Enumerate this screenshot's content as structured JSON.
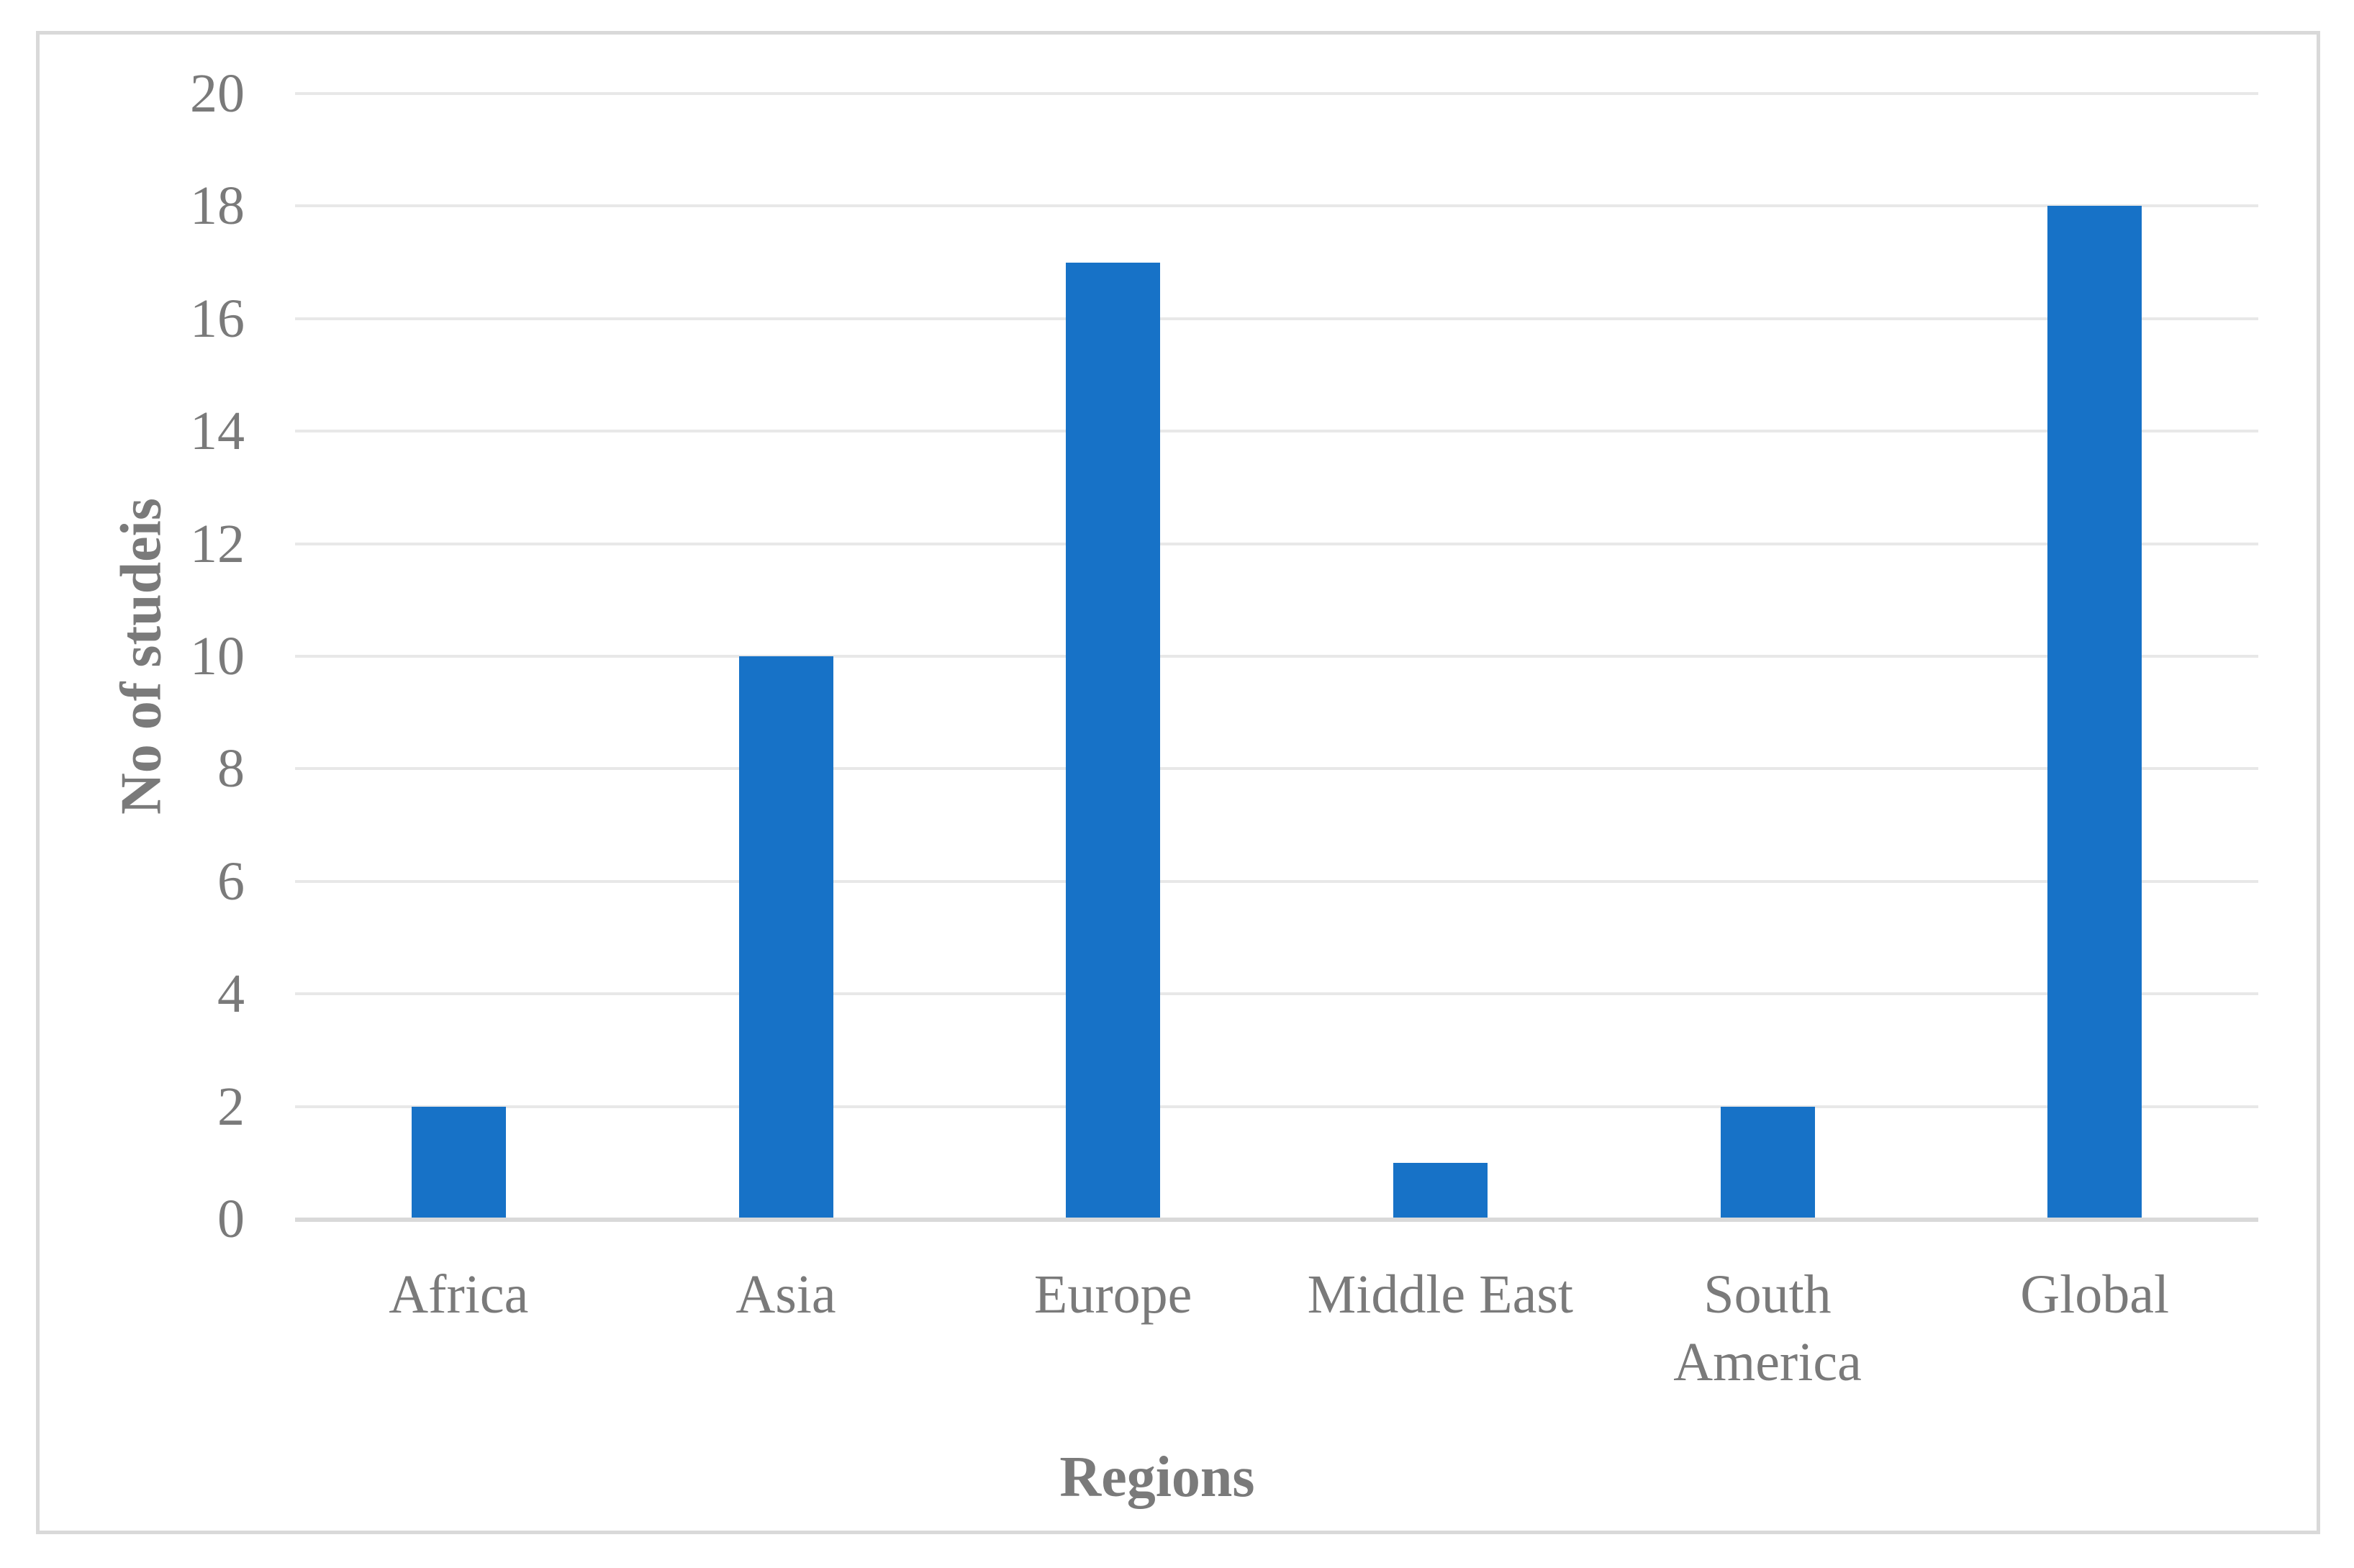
{
  "chart_data": {
    "type": "bar",
    "title": "",
    "categories": [
      "Africa",
      "Asia",
      "Europe",
      "Middle East",
      "South America",
      "Global"
    ],
    "values": [
      2,
      10,
      17,
      1,
      2,
      18
    ],
    "xlabel": "Regions",
    "ylabel": "No of studeis",
    "ylim": [
      0,
      20
    ],
    "ytick_step": 2,
    "ytick_labels": [
      "0",
      "2",
      "4",
      "6",
      "8",
      "10",
      "12",
      "14",
      "16",
      "18",
      "20"
    ],
    "grid": "horizontal",
    "legend_position": "none",
    "colors": {
      "bar_fill": "#1772C7",
      "axis_text": "#7a7a7a",
      "gridline": "#E8E8E8",
      "axis_line": "#D9D9D9",
      "figure_border": "#D9D9D9",
      "background": "#ffffff"
    }
  }
}
